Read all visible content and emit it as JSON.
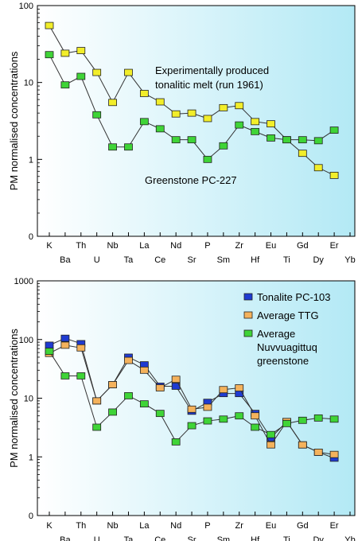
{
  "colors": {
    "background_start": "#ffffff",
    "background_end": "#b3e9f5",
    "yellow_marker": "#f2ee2a",
    "green_marker": "#3fd437",
    "blue_marker": "#1f3bd1",
    "orange_marker": "#f4b25c",
    "line": "#333333"
  },
  "chart_data": [
    {
      "type": "line",
      "title": "",
      "xlabel": "",
      "ylabel": "PM normalised concentrations",
      "yscale": "log",
      "ylim": [
        0.1,
        100
      ],
      "yticks": [
        {
          "value": 0.1,
          "label": "0"
        },
        {
          "value": 1,
          "label": "1"
        },
        {
          "value": 10,
          "label": "10"
        },
        {
          "value": 100,
          "label": "100"
        }
      ],
      "categories": [
        "K",
        "Ba",
        "Th",
        "U",
        "Nb",
        "Ta",
        "La",
        "Ce",
        "Nd",
        "Sr",
        "P",
        "Sm",
        "Zr",
        "Hf",
        "Eu",
        "Ti",
        "Gd",
        "Dy",
        "Er",
        "Yb"
      ],
      "grid": false,
      "legend": "none",
      "series": [
        {
          "name": "Experimentally produced tonalitic melt (run 1961)",
          "color_key": "yellow_marker",
          "values": [
            55,
            24,
            26,
            13.5,
            5.5,
            13.5,
            7.2,
            5.6,
            3.9,
            4.0,
            3.4,
            4.7,
            5.0,
            3.1,
            2.9,
            1.8,
            1.2,
            0.78,
            0.62,
            null
          ]
        },
        {
          "name": "Greenstone PC-227",
          "color_key": "green_marker",
          "values": [
            23,
            9.3,
            12,
            3.8,
            1.45,
            1.45,
            3.1,
            2.5,
            1.8,
            1.8,
            1.0,
            1.5,
            2.8,
            2.3,
            1.9,
            1.8,
            1.8,
            1.75,
            2.4,
            null
          ]
        }
      ],
      "annotations": [
        {
          "line1": "Experimentally produced",
          "line2": "tonalitic melt (run 1961)"
        },
        {
          "line1": "Greenstone PC-227"
        }
      ]
    },
    {
      "type": "line",
      "title": "",
      "xlabel": "",
      "ylabel": "PM normalised concentrations",
      "yscale": "log",
      "ylim": [
        0.1,
        1000
      ],
      "yticks": [
        {
          "value": 0.1,
          "label": "0"
        },
        {
          "value": 1,
          "label": "1"
        },
        {
          "value": 10,
          "label": "10"
        },
        {
          "value": 100,
          "label": "100"
        },
        {
          "value": 1000,
          "label": "1000"
        }
      ],
      "categories": [
        "K",
        "Ba",
        "Th",
        "U",
        "Nb",
        "Ta",
        "La",
        "Ce",
        "Nd",
        "Sr",
        "P",
        "Sm",
        "Zr",
        "Hf",
        "Eu",
        "Ti",
        "Gd",
        "Dy",
        "Er",
        "Yb"
      ],
      "grid": false,
      "legend": "top-right",
      "series": [
        {
          "name": "Tonalite PC-103",
          "color_key": "blue_marker",
          "values": [
            80,
            105,
            85,
            9,
            17,
            50,
            37,
            16,
            16,
            6,
            8.5,
            12,
            12,
            5.5,
            2.1,
            4,
            1.6,
            1.2,
            0.95,
            null
          ]
        },
        {
          "name": "Average TTG",
          "color_key": "orange_marker",
          "values": [
            58,
            80,
            72,
            9,
            17,
            44,
            30,
            15,
            21,
            6.5,
            7,
            14,
            15,
            5,
            1.6,
            4,
            1.6,
            1.2,
            1.1,
            null
          ]
        },
        {
          "name": "Average Nuvvuagittuq greenstone",
          "color_key": "green_marker",
          "values": [
            63,
            24,
            24,
            3.2,
            5.8,
            11,
            8,
            5.5,
            1.8,
            3.4,
            4.1,
            4.4,
            5,
            3.2,
            2.4,
            3.7,
            4.2,
            4.6,
            4.4,
            null
          ]
        }
      ],
      "legend_entries": [
        {
          "line1": "Tonalite PC-103",
          "color_key": "blue_marker"
        },
        {
          "line1": "Average TTG",
          "color_key": "orange_marker"
        },
        {
          "line1": "Average",
          "line2": "Nuvvuagittuq",
          "line3": "greenstone",
          "color_key": "green_marker"
        }
      ]
    }
  ]
}
